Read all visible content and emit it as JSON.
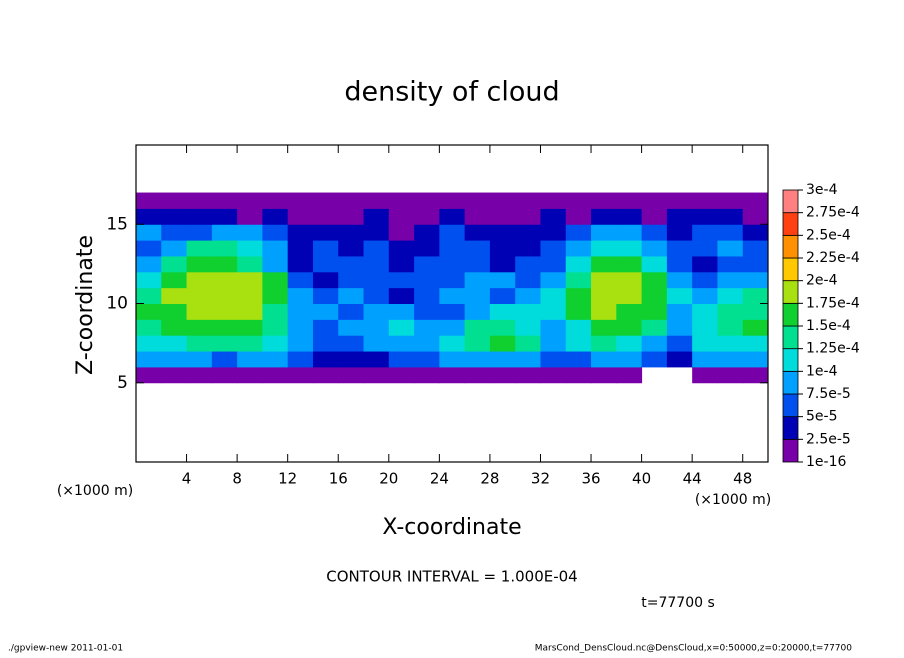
{
  "chart_data": {
    "type": "heatmap",
    "title": "density of cloud",
    "x_label": "X-coordinate",
    "y_label": "Z-coordinate",
    "axis_unit": "(×1000 m)",
    "note": "CONTOUR INTERVAL = 1.000E-04",
    "time": "t=77700 s",
    "footer_left": "./gpview-new  2011-01-01",
    "footer_right": "MarsCond_DensCloud.nc@DensCloud,x=0:50000,z=0:20000,t=77700",
    "xlim": [
      0,
      50
    ],
    "ylim": [
      0,
      20
    ],
    "xticks": [
      4,
      8,
      12,
      16,
      20,
      24,
      28,
      32,
      36,
      40,
      44,
      48
    ],
    "yticks": [
      5,
      10,
      15
    ],
    "x": [
      1,
      3,
      5,
      7,
      9,
      11,
      13,
      15,
      17,
      19,
      21,
      23,
      25,
      27,
      29,
      31,
      33,
      35,
      37,
      39,
      41,
      43,
      45,
      47,
      49
    ],
    "y": [
      5.5,
      6.5,
      7.5,
      8.5,
      9.5,
      10.5,
      11.5,
      12.5,
      13.5,
      14.5,
      15.5,
      16.5
    ],
    "z": [
      [
        1e-05,
        1e-05,
        1e-05,
        1e-05,
        1e-05,
        1e-05,
        1e-05,
        1e-05,
        1e-05,
        1e-05,
        1e-05,
        1e-05,
        1e-05,
        1e-05,
        1e-05,
        1e-05,
        1e-05,
        1e-05,
        1e-05,
        1e-05,
        null,
        null,
        1e-05,
        1e-05,
        1e-05
      ],
      [
        8.5e-05,
        8.5e-05,
        8.5e-05,
        6e-05,
        8.5e-05,
        8.5e-05,
        6e-05,
        3.5e-05,
        3.5e-05,
        3.5e-05,
        6e-05,
        6e-05,
        8.5e-05,
        8.5e-05,
        8.5e-05,
        8.5e-05,
        6e-05,
        6e-05,
        8.5e-05,
        8.5e-05,
        6e-05,
        3.5e-05,
        8.5e-05,
        8.5e-05,
        8.5e-05
      ],
      [
        0.00011,
        0.00011,
        0.000135,
        0.000135,
        0.000135,
        0.00011,
        8.5e-05,
        6e-05,
        6e-05,
        8.5e-05,
        8.5e-05,
        8.5e-05,
        0.00011,
        0.000135,
        0.00016,
        0.000135,
        8.5e-05,
        0.00011,
        0.000135,
        0.00011,
        8.5e-05,
        6e-05,
        0.00011,
        0.00011,
        0.00011
      ],
      [
        0.000135,
        0.00016,
        0.00016,
        0.00016,
        0.00016,
        0.000135,
        8.5e-05,
        6e-05,
        8.5e-05,
        8.5e-05,
        0.00011,
        8.5e-05,
        8.5e-05,
        0.000135,
        0.000135,
        0.00011,
        8.5e-05,
        0.00011,
        0.00016,
        0.00016,
        0.000135,
        8.5e-05,
        0.00011,
        0.000135,
        0.00016
      ],
      [
        0.00016,
        0.00016,
        0.000185,
        0.000185,
        0.000185,
        0.000135,
        8.5e-05,
        8.5e-05,
        6e-05,
        8.5e-05,
        8.5e-05,
        6e-05,
        6e-05,
        8.5e-05,
        0.00011,
        0.00011,
        0.00011,
        0.00016,
        0.000185,
        0.00016,
        0.00016,
        8.5e-05,
        0.00011,
        0.000135,
        0.000135
      ],
      [
        0.000135,
        0.000185,
        0.000185,
        0.000185,
        0.000185,
        0.00016,
        8.5e-05,
        6e-05,
        8.5e-05,
        6e-05,
        3.5e-05,
        6e-05,
        8.5e-05,
        8.5e-05,
        6e-05,
        8.5e-05,
        0.00011,
        0.00016,
        0.000185,
        0.000185,
        0.00016,
        0.00011,
        8.5e-05,
        0.00011,
        0.000135
      ],
      [
        0.00011,
        0.00016,
        0.000185,
        0.000185,
        0.000185,
        0.00016,
        6e-05,
        3.5e-05,
        6e-05,
        6e-05,
        6e-05,
        6e-05,
        6e-05,
        8.5e-05,
        8.5e-05,
        6e-05,
        8.5e-05,
        0.000135,
        0.000185,
        0.000185,
        0.00016,
        8.5e-05,
        6e-05,
        8.5e-05,
        8.5e-05
      ],
      [
        8.5e-05,
        0.000135,
        0.00016,
        0.00016,
        0.000135,
        8.5e-05,
        3.5e-05,
        6e-05,
        6e-05,
        6e-05,
        3.5e-05,
        6e-05,
        6e-05,
        6e-05,
        3.5e-05,
        6e-05,
        6e-05,
        0.00011,
        0.00016,
        0.00016,
        0.00011,
        6e-05,
        3.5e-05,
        6e-05,
        6e-05
      ],
      [
        6e-05,
        8.5e-05,
        0.000135,
        0.000135,
        0.00011,
        8.5e-05,
        3.5e-05,
        6e-05,
        3.5e-05,
        6e-05,
        3.5e-05,
        3.5e-05,
        6e-05,
        6e-05,
        3.5e-05,
        3.5e-05,
        6e-05,
        8.5e-05,
        0.00011,
        0.00011,
        8.5e-05,
        6e-05,
        6e-05,
        8.5e-05,
        6e-05
      ],
      [
        8.5e-05,
        6e-05,
        6e-05,
        8.5e-05,
        8.5e-05,
        6e-05,
        3.5e-05,
        3.5e-05,
        3.5e-05,
        3.5e-05,
        1e-05,
        3.5e-05,
        6e-05,
        3.5e-05,
        3.5e-05,
        3.5e-05,
        3.5e-05,
        6e-05,
        8.5e-05,
        8.5e-05,
        6e-05,
        3.5e-05,
        6e-05,
        6e-05,
        3.5e-05
      ],
      [
        3.5e-05,
        3.5e-05,
        3.5e-05,
        3.5e-05,
        1e-05,
        3.5e-05,
        1e-05,
        1e-05,
        1e-05,
        3.5e-05,
        1e-05,
        1e-05,
        3.5e-05,
        1e-05,
        1e-05,
        1e-05,
        3.5e-05,
        1e-05,
        3.5e-05,
        3.5e-05,
        1e-05,
        3.5e-05,
        3.5e-05,
        3.5e-05,
        1e-05
      ],
      [
        1e-05,
        1e-05,
        1e-05,
        1e-05,
        1e-05,
        1e-05,
        1e-05,
        1e-05,
        1e-05,
        1e-05,
        1e-05,
        1e-05,
        1e-05,
        1e-05,
        1e-05,
        1e-05,
        1e-05,
        1e-05,
        1e-05,
        1e-05,
        1e-05,
        1e-05,
        1e-05,
        1e-05,
        1e-05
      ]
    ],
    "levels": [
      {
        "value": 1e-16,
        "label": "1e-16"
      },
      {
        "value": 2.5e-05,
        "label": "2.5e-5"
      },
      {
        "value": 5e-05,
        "label": "5e-5"
      },
      {
        "value": 7.5e-05,
        "label": "7.5e-5"
      },
      {
        "value": 0.0001,
        "label": "1e-4"
      },
      {
        "value": 0.000125,
        "label": "1.25e-4"
      },
      {
        "value": 0.00015,
        "label": "1.5e-4"
      },
      {
        "value": 0.000175,
        "label": "1.75e-4"
      },
      {
        "value": 0.0002,
        "label": "2e-4"
      },
      {
        "value": 0.000225,
        "label": "2.25e-4"
      },
      {
        "value": 0.00025,
        "label": "2.5e-4"
      },
      {
        "value": 0.000275,
        "label": "2.75e-4"
      },
      {
        "value": 0.0003,
        "label": "3e-4"
      }
    ],
    "colors": [
      "#7800a8",
      "#0000b4",
      "#0050f0",
      "#00a0ff",
      "#00dcdc",
      "#00e090",
      "#10d030",
      "#a8e010",
      "#ffc800",
      "#ff9000",
      "#ff4010",
      "#ff8080"
    ]
  }
}
